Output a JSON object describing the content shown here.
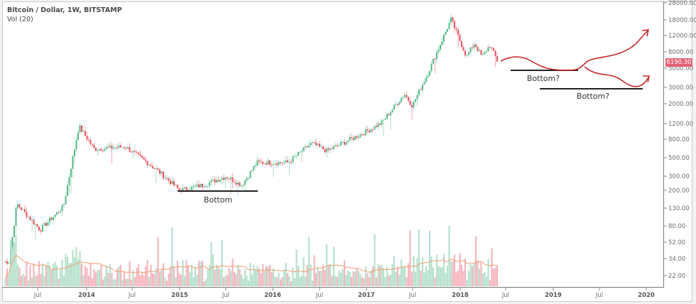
{
  "legend": {
    "title": "Bitcoin / Dollar, 1W, BITSTAMP",
    "indicator": "Vol (20)"
  },
  "price_tag": {
    "value": "6190.30",
    "color": "#e0526a"
  },
  "colors": {
    "up": "#53b987",
    "down": "#eb4d5c",
    "vol_up": "#a8dcc3",
    "vol_down": "#f4a8b3",
    "ma": "#f0a070",
    "annotation_arrow": "#c62828",
    "annotation_line": "#222222"
  },
  "annotations": [
    {
      "label": "Bottom",
      "type": "support-line"
    },
    {
      "label": "Bottom?",
      "type": "support-line"
    },
    {
      "label": "Bottom?",
      "type": "support-line"
    }
  ],
  "chart_data": {
    "type": "candlestick",
    "title": "Bitcoin / Dollar, 1W, BITSTAMP",
    "subtitle": "Vol (20)",
    "xlabel": "",
    "ylabel": "",
    "y_scale": "log",
    "y_ticks": [
      "28000.00",
      "18000.00",
      "12000.00",
      "8000.00",
      "5000.00",
      "3000.00",
      "2000.00",
      "1200.00",
      "800.00",
      "500.00",
      "300.00",
      "200.00",
      "130.00",
      "80.00",
      "52.00",
      "34.00",
      "22.00"
    ],
    "x_ticks": [
      {
        "label": "Jul",
        "bold": false
      },
      {
        "label": "2014",
        "bold": true
      },
      {
        "label": "Jul",
        "bold": false
      },
      {
        "label": "2015",
        "bold": true
      },
      {
        "label": "Jul",
        "bold": false
      },
      {
        "label": "2016",
        "bold": true
      },
      {
        "label": "Jul",
        "bold": false
      },
      {
        "label": "2017",
        "bold": true
      },
      {
        "label": "Jul",
        "bold": false
      },
      {
        "label": "2018",
        "bold": true
      },
      {
        "label": "Jul",
        "bold": false
      },
      {
        "label": "2019",
        "bold": true
      },
      {
        "label": "Jul",
        "bold": false
      },
      {
        "label": "2020",
        "bold": true
      }
    ],
    "last_price": 6190.3,
    "key_points": [
      {
        "date": "2013-03",
        "price": 30
      },
      {
        "date": "2013-04",
        "price": 140
      },
      {
        "date": "2013-07",
        "price": 70
      },
      {
        "date": "2013-10",
        "price": 130
      },
      {
        "date": "2013-12",
        "price": 1100
      },
      {
        "date": "2014-02",
        "price": 600
      },
      {
        "date": "2014-06",
        "price": 640
      },
      {
        "date": "2014-10",
        "price": 350
      },
      {
        "date": "2015-01",
        "price": 200
      },
      {
        "date": "2015-04",
        "price": 230
      },
      {
        "date": "2015-07",
        "price": 290
      },
      {
        "date": "2015-09",
        "price": 230
      },
      {
        "date": "2015-11",
        "price": 420
      },
      {
        "date": "2016-03",
        "price": 420
      },
      {
        "date": "2016-06",
        "price": 700
      },
      {
        "date": "2016-08",
        "price": 570
      },
      {
        "date": "2017-01",
        "price": 950
      },
      {
        "date": "2017-03",
        "price": 1200
      },
      {
        "date": "2017-06",
        "price": 2600
      },
      {
        "date": "2017-07",
        "price": 1900
      },
      {
        "date": "2017-09",
        "price": 4500
      },
      {
        "date": "2017-12",
        "price": 19000
      },
      {
        "date": "2018-02",
        "price": 7000
      },
      {
        "date": "2018-03",
        "price": 10000
      },
      {
        "date": "2018-04",
        "price": 7000
      },
      {
        "date": "2018-05",
        "price": 9500
      },
      {
        "date": "2018-06",
        "price": 6190
      }
    ],
    "volume_ma_period": 20,
    "grid": false,
    "legend_position": "top-left"
  }
}
